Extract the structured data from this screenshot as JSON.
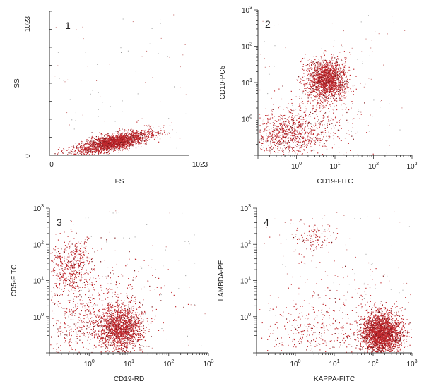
{
  "chart_data": [
    {
      "type": "scatter",
      "panel_number": "1",
      "xlabel": "FS",
      "ylabel": "SS",
      "x_scale": "linear",
      "y_scale": "linear",
      "xlim": [
        0,
        1023
      ],
      "ylim": [
        0,
        1023
      ],
      "x_tick_labels": [
        "0",
        "1023"
      ],
      "y_tick_labels": [
        "0",
        "1023"
      ],
      "point_color": "#c0282d",
      "series": [
        {
          "clusters": [
            {
              "x_center": 470,
              "x_spread": 140,
              "y_center": 95,
              "y_spread": 28,
              "slope": 0.2,
              "count": 2200
            }
          ]
        }
      ]
    },
    {
      "type": "scatter",
      "panel_number": "2",
      "xlabel": "CD19-FITC",
      "ylabel": "CD10-PC5",
      "x_scale": "log",
      "y_scale": "log",
      "xlim": [
        0.1,
        1000
      ],
      "ylim": [
        0.1,
        1000
      ],
      "x_tick_labels": [
        "10^0",
        "10^1",
        "10^2",
        "10^3"
      ],
      "y_tick_labels": [
        "10^0",
        "10^1",
        "10^2",
        "10^3"
      ],
      "point_color": "#c0282d",
      "series": [
        {
          "clusters": [
            {
              "x_center": 6,
              "x_spread_decades": 0.25,
              "y_center": 12,
              "y_spread_decades": 0.28,
              "count": 1800
            },
            {
              "x_center": 0.5,
              "x_spread_decades": 0.45,
              "y_center": 0.35,
              "y_spread_decades": 0.3,
              "count": 700
            },
            {
              "x_center": 3,
              "x_spread_decades": 0.6,
              "y_center": 0.8,
              "y_spread_decades": 0.5,
              "count": 300
            }
          ]
        }
      ]
    },
    {
      "type": "scatter",
      "panel_number": "3",
      "xlabel": "CD19-RD",
      "ylabel": "CD5-FITC",
      "x_scale": "log",
      "y_scale": "log",
      "xlim": [
        0.1,
        1000
      ],
      "ylim": [
        0.1,
        1000
      ],
      "x_tick_labels": [
        "10^0",
        "10^1",
        "10^2",
        "10^3"
      ],
      "y_tick_labels": [
        "10^0",
        "10^1",
        "10^2",
        "10^3"
      ],
      "point_color": "#c0282d",
      "series": [
        {
          "clusters": [
            {
              "x_center": 6,
              "x_spread_decades": 0.28,
              "y_center": 0.5,
              "y_spread_decades": 0.3,
              "count": 1600
            },
            {
              "x_center": 0.35,
              "x_spread_decades": 0.3,
              "y_center": 25,
              "y_spread_decades": 0.4,
              "count": 500
            },
            {
              "x_center": 0.5,
              "x_spread_decades": 0.5,
              "y_center": 0.6,
              "y_spread_decades": 0.5,
              "count": 400
            },
            {
              "x_center": 5,
              "x_spread_decades": 0.7,
              "y_center": 5,
              "y_spread_decades": 0.6,
              "count": 200
            }
          ]
        }
      ]
    },
    {
      "type": "scatter",
      "panel_number": "4",
      "xlabel": "KAPPA-FITC",
      "ylabel": "LAMBDA-PE",
      "x_scale": "log",
      "y_scale": "log",
      "xlim": [
        0.1,
        1000
      ],
      "ylim": [
        0.1,
        1000
      ],
      "x_tick_labels": [
        "10^0",
        "10^1",
        "10^2",
        "10^3"
      ],
      "y_tick_labels": [
        "10^0",
        "10^1",
        "10^2",
        "10^3"
      ],
      "point_color": "#c0282d",
      "series": [
        {
          "clusters": [
            {
              "x_center": 160,
              "x_spread_decades": 0.25,
              "y_center": 0.35,
              "y_spread_decades": 0.28,
              "count": 2600
            },
            {
              "x_center": 3,
              "x_spread_decades": 0.3,
              "y_center": 150,
              "y_spread_decades": 0.25,
              "count": 120
            },
            {
              "x_center": 3,
              "x_spread_decades": 0.7,
              "y_center": 0.4,
              "y_spread_decades": 0.5,
              "count": 350
            },
            {
              "x_center": 20,
              "x_spread_decades": 0.8,
              "y_center": 3,
              "y_spread_decades": 0.7,
              "count": 100
            }
          ]
        }
      ]
    }
  ]
}
